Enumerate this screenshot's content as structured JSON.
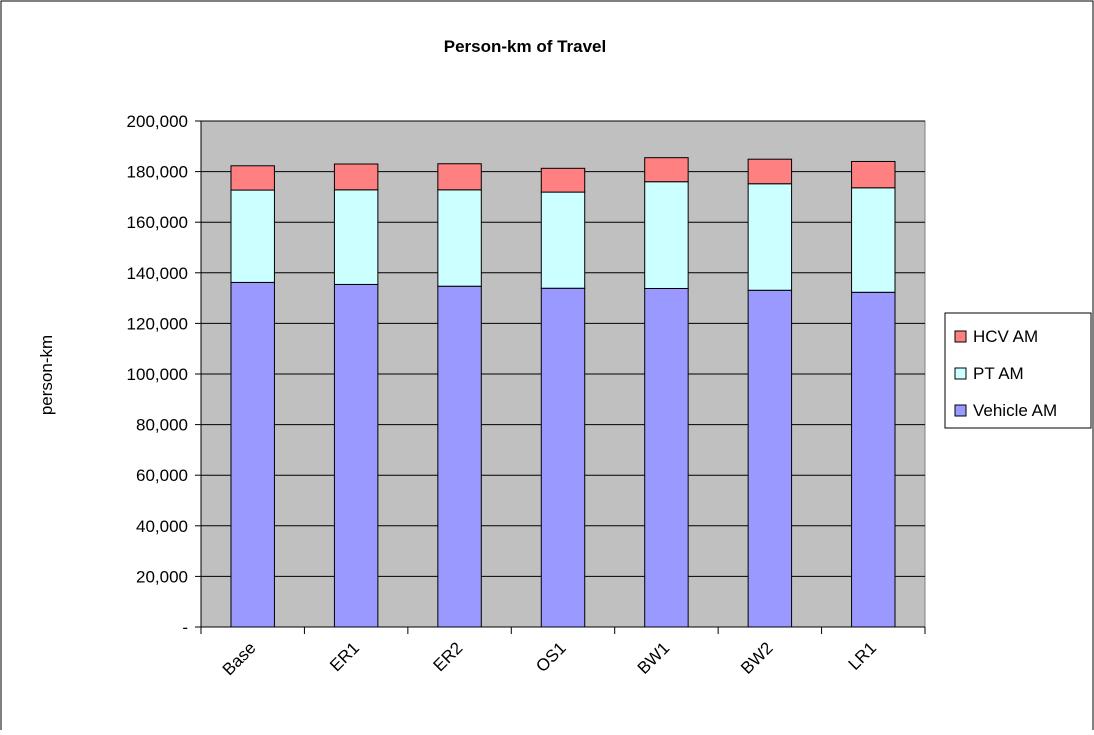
{
  "chart_data": {
    "type": "bar",
    "stacked": true,
    "title": "Person-km of Travel",
    "ylabel": "person-km",
    "xlabel": "",
    "categories": [
      "Base",
      "ER1",
      "ER2",
      "OS1",
      "BW1",
      "BW2",
      "LR1"
    ],
    "ylim": [
      0,
      200000
    ],
    "yticks": [
      0,
      20000,
      40000,
      60000,
      80000,
      100000,
      120000,
      140000,
      160000,
      180000,
      200000
    ],
    "ytick_labels": [
      "-",
      "20,000",
      "40,000",
      "60,000",
      "80,000",
      "100,000",
      "120,000",
      "140,000",
      "160,000",
      "180,000",
      "200,000"
    ],
    "grid": true,
    "legend_position": "right",
    "series": [
      {
        "name": "Vehicle AM",
        "color": "#9999ff",
        "values": [
          136200,
          135400,
          134700,
          133900,
          133800,
          133100,
          132300
        ]
      },
      {
        "name": "PT AM",
        "color": "#ccffff",
        "values": [
          36500,
          37400,
          38100,
          38000,
          42200,
          42100,
          41300
        ]
      },
      {
        "name": "HCV AM",
        "color": "#ff8080",
        "values": [
          9600,
          10200,
          10300,
          9400,
          9500,
          9700,
          10400
        ]
      }
    ],
    "legend_order": [
      "HCV AM",
      "PT AM",
      "Vehicle AM"
    ],
    "plot_background": "#c0c0c0",
    "gridline_color": "#000000"
  }
}
